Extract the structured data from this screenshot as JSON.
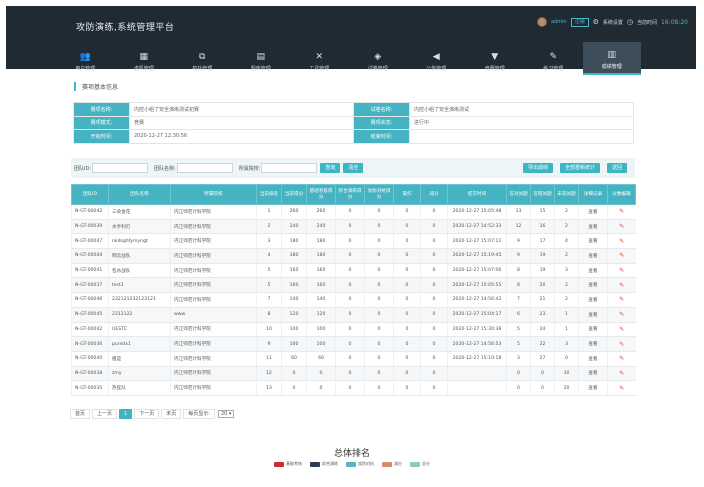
{
  "app": {
    "title": "攻防演练,系统管理平台",
    "user": "admin",
    "logout": "注销",
    "settings": "系统设置",
    "time_label": "当前时间",
    "time": "16:08:20"
  },
  "nav": [
    {
      "label": "用户管理",
      "icon": "users-icon"
    },
    {
      "label": "虚机管理",
      "icon": "vm-icon"
    },
    {
      "label": "拓扑管理",
      "icon": "topology-icon"
    },
    {
      "label": "题库管理",
      "icon": "question-bank-icon"
    },
    {
      "label": "工具管理",
      "icon": "tools-icon"
    },
    {
      "label": "试卷管理",
      "icon": "paper-icon"
    },
    {
      "label": "公告管理",
      "icon": "announce-icon"
    },
    {
      "label": "竞赛管理",
      "icon": "trophy-icon"
    },
    {
      "label": "练习管理",
      "icon": "practice-icon"
    },
    {
      "label": "成绩管理",
      "icon": "score-icon"
    }
  ],
  "section_title": "赛项基本信息",
  "info": {
    "name_k": "赛项名称:",
    "name_v": "内控小组了安全演练测试初赛",
    "paper_k": "试卷名称:",
    "paper_v": "内控小组了安全演练测试",
    "mode_k": "赛项模式:",
    "mode_v": "竞赛",
    "status_k": "赛项状态:",
    "status_v": "进行中",
    "start_k": "开始时间:",
    "start_v": "2020-12-27 12:30:56",
    "end_k": "结束时间:",
    "end_v": ""
  },
  "filter": {
    "team_id": "团队ID:",
    "team_name": "团队名称:",
    "school": "所属院校:",
    "search": "查询",
    "reset": "清空",
    "export": "导出成绩",
    "rescore": "全部重新统计",
    "back": "返回"
  },
  "columns": [
    "团队ID",
    "团队名称",
    "所属院校",
    "当前排名",
    "当前得分",
    "基础考核得分",
    "综合演练得分",
    "攻防对抗得分",
    "操作",
    "减分",
    "提交时间",
    "答对试题",
    "答错试题",
    "未答试题",
    "详细记录",
    "分数编辑"
  ],
  "rows": [
    [
      "N-GT-00042",
      "三朵金花",
      "内江师范计科学院",
      "1",
      "260",
      "260",
      "0",
      "0",
      "0",
      "0",
      "2020-12-27 15:05:48",
      "13",
      "15",
      "2",
      "查看"
    ],
    [
      "N-GT-00039",
      "水手利刃",
      "内江师范计科学院",
      "2",
      "240",
      "240",
      "0",
      "0",
      "0",
      "0",
      "2020-12-27 14:52:33",
      "12",
      "16",
      "2",
      "查看"
    ],
    [
      "N-GT-00047",
      "nkdsghfymyngt",
      "内江师范计科学院",
      "3",
      "180",
      "180",
      "0",
      "0",
      "0",
      "0",
      "2020-12-27 15:07:11",
      "9",
      "17",
      "4",
      "查看"
    ],
    [
      "N-GT-00044",
      "网云战队",
      "内江师范计科学院",
      "4",
      "180",
      "180",
      "0",
      "0",
      "0",
      "0",
      "2020-12-27 15:19:45",
      "9",
      "19",
      "2",
      "查看"
    ],
    [
      "N-GT-00041",
      "包水战队",
      "内江师范计科学院",
      "5",
      "160",
      "160",
      "0",
      "0",
      "0",
      "0",
      "2020-12-27 15:07:06",
      "8",
      "19",
      "3",
      "查看"
    ],
    [
      "N-GT-00037",
      "test1",
      "内江师范计科学院",
      "5",
      "160",
      "160",
      "0",
      "0",
      "0",
      "0",
      "2020-12-27 15:05:55",
      "8",
      "20",
      "2",
      "查看"
    ],
    [
      "N-GT-00046",
      "232121232123121",
      "内江师范计科学院",
      "7",
      "140",
      "140",
      "0",
      "0",
      "0",
      "0",
      "2020-12-27 14:56:42",
      "7",
      "21",
      "2",
      "查看"
    ],
    [
      "N-GT-00045",
      "2312122",
      "www",
      "8",
      "120",
      "120",
      "0",
      "0",
      "0",
      "0",
      "2020-12-27 15:04:17",
      "6",
      "23",
      "1",
      "查看"
    ],
    [
      "N-GT-00042",
      "UESTC",
      "内江师范计科学院",
      "10",
      "100",
      "100",
      "0",
      "0",
      "0",
      "0",
      "2020-12-27 15:30:38",
      "5",
      "24",
      "1",
      "查看"
    ],
    [
      "N-GT-00036",
      "purxdx1",
      "内江师范计科学院",
      "9",
      "100",
      "100",
      "0",
      "0",
      "0",
      "0",
      "2020-12-27 14:56:53",
      "5",
      "22",
      "3",
      "查看"
    ],
    [
      "N-GT-00040",
      "姐是",
      "内江师范计科学院",
      "11",
      "60",
      "60",
      "0",
      "0",
      "0",
      "0",
      "2020-12-27 15:10:18",
      "3",
      "27",
      "0",
      "查看"
    ],
    [
      "N-GT-00038",
      "zmy",
      "内江师范计科学院",
      "12",
      "0",
      "0",
      "0",
      "0",
      "0",
      "0",
      "",
      "0",
      "0",
      "30",
      "查看"
    ],
    [
      "N-GT-00035",
      "热狂队",
      "内江师范计科学院",
      "13",
      "0",
      "0",
      "0",
      "0",
      "0",
      "0",
      "",
      "0",
      "0",
      "20",
      "查看"
    ]
  ],
  "pager": {
    "first": "首页",
    "prev": "上一页",
    "current": "1",
    "next": "下一页",
    "last": "末页",
    "per_page_label": "每页显示:",
    "per_page": "20"
  },
  "ranking": {
    "title": "总体排名",
    "legend": [
      {
        "label": "基础考核",
        "color": "#c9302c"
      },
      {
        "label": "综合演练",
        "color": "#2d3e50"
      },
      {
        "label": "攻防对抗",
        "color": "#5ab4c4"
      },
      {
        "label": "减分",
        "color": "#d98a6a"
      },
      {
        "label": "总分",
        "color": "#8fcbb0"
      }
    ]
  }
}
